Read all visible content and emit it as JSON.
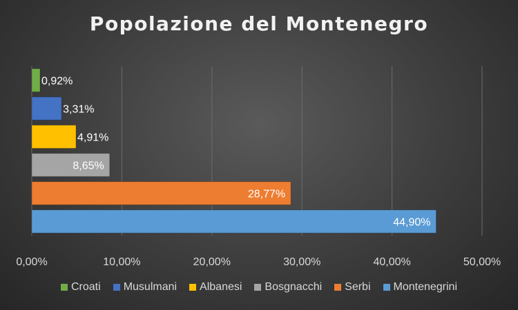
{
  "chart_data": {
    "type": "bar",
    "orientation": "horizontal",
    "title": "Popolazione del Montenegro",
    "categories": [
      "Croati",
      "Musulmani",
      "Albanesi",
      "Bosgnacchi",
      "Serbi",
      "Montenegrini"
    ],
    "values": [
      0.92,
      3.31,
      4.91,
      8.65,
      28.77,
      44.9
    ],
    "data_labels": [
      "0,92%",
      "3,31%",
      "4,91%",
      "8,65%",
      "28,77%",
      "44,90%"
    ],
    "colors": [
      "#70ad47",
      "#4472c4",
      "#ffc000",
      "#a5a5a5",
      "#ed7d31",
      "#5b9bd5"
    ],
    "xlim": [
      0,
      50
    ],
    "x_ticks": [
      0,
      10,
      20,
      30,
      40,
      50
    ],
    "x_tick_labels": [
      "0,00%",
      "10,00%",
      "20,00%",
      "30,00%",
      "40,00%",
      "50,00%"
    ],
    "xlabel": "",
    "ylabel": "",
    "grid": "vertical",
    "legend_position": "bottom"
  }
}
